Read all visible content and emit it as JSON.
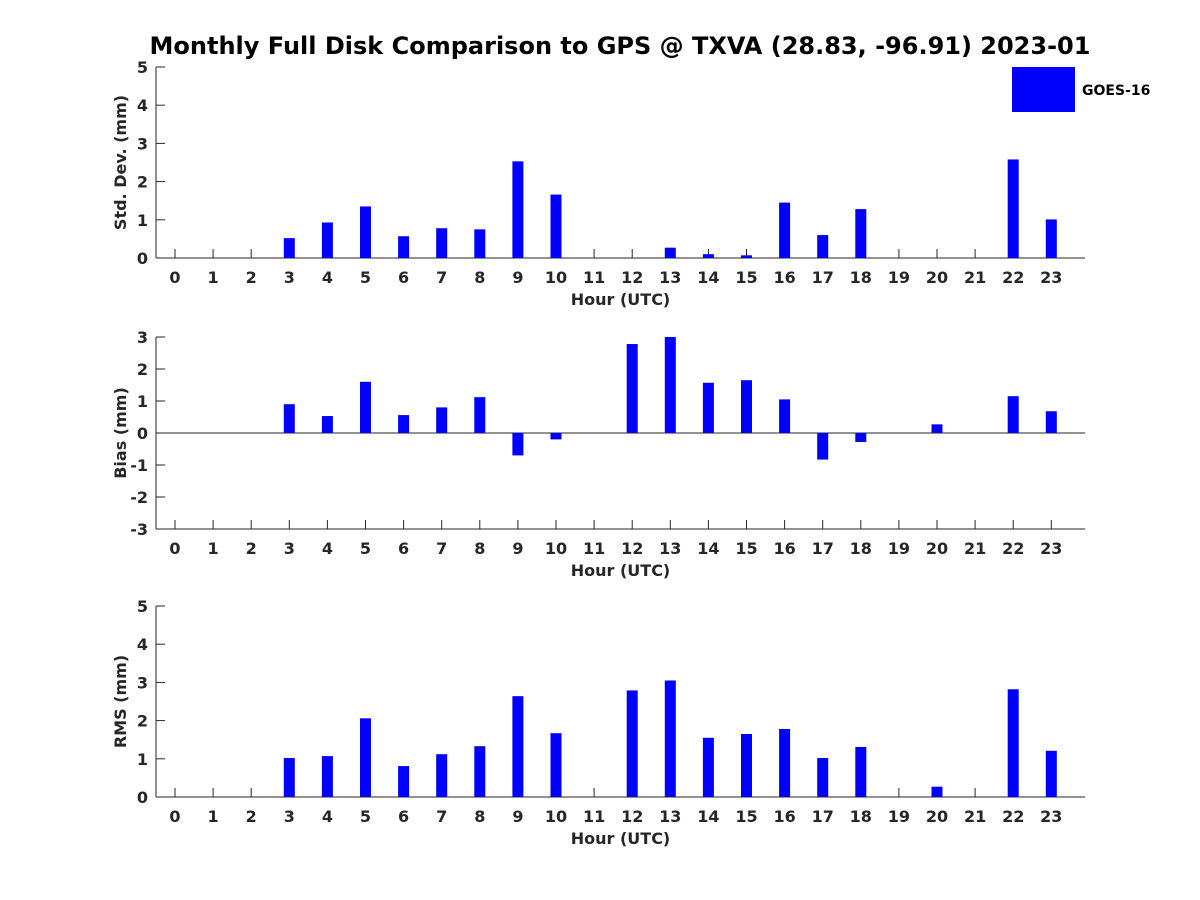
{
  "title": "Monthly Full Disk Comparison to GPS @ TXVA (28.83, -96.91) 2023-01",
  "legend": {
    "entries": [
      "GOES-16"
    ],
    "position": "top-right"
  },
  "colors": {
    "bar": "#0000ff",
    "axis": "#262626",
    "background": "#ffffff"
  },
  "chart_data": [
    {
      "type": "bar",
      "ylabel": "Std. Dev. (mm)",
      "xlabel": "Hour (UTC)",
      "ylim": [
        0,
        5
      ],
      "yticks": [
        0,
        1,
        2,
        3,
        4,
        5
      ],
      "categories": [
        "0",
        "1",
        "2",
        "3",
        "4",
        "5",
        "6",
        "7",
        "8",
        "9",
        "10",
        "11",
        "12",
        "13",
        "14",
        "15",
        "16",
        "17",
        "18",
        "19",
        "20",
        "21",
        "22",
        "23"
      ],
      "series": [
        {
          "name": "GOES-16",
          "values": [
            0,
            0,
            0,
            0.52,
            0.93,
            1.35,
            0.57,
            0.78,
            0.75,
            2.53,
            1.66,
            0,
            0,
            0.27,
            0.1,
            0.07,
            1.45,
            0.6,
            1.28,
            0,
            0,
            0,
            2.58,
            1.01
          ]
        }
      ]
    },
    {
      "type": "bar",
      "ylabel": "Bias (mm)",
      "xlabel": "Hour (UTC)",
      "ylim": [
        -3,
        3
      ],
      "yticks": [
        -3,
        -2,
        -1,
        0,
        1,
        2,
        3
      ],
      "categories": [
        "0",
        "1",
        "2",
        "3",
        "4",
        "5",
        "6",
        "7",
        "8",
        "9",
        "10",
        "11",
        "12",
        "13",
        "14",
        "15",
        "16",
        "17",
        "18",
        "19",
        "20",
        "21",
        "22",
        "23"
      ],
      "series": [
        {
          "name": "GOES-16",
          "values": [
            0,
            0,
            0,
            0.9,
            0.53,
            1.6,
            0.56,
            0.8,
            1.12,
            -0.7,
            -0.2,
            0,
            2.78,
            3.0,
            1.57,
            1.65,
            1.05,
            -0.83,
            -0.28,
            0,
            0.27,
            0,
            1.15,
            0.68
          ]
        }
      ]
    },
    {
      "type": "bar",
      "ylabel": "RMS (mm)",
      "xlabel": "Hour (UTC)",
      "ylim": [
        0,
        5
      ],
      "yticks": [
        0,
        1,
        2,
        3,
        4,
        5
      ],
      "categories": [
        "0",
        "1",
        "2",
        "3",
        "4",
        "5",
        "6",
        "7",
        "8",
        "9",
        "10",
        "11",
        "12",
        "13",
        "14",
        "15",
        "16",
        "17",
        "18",
        "19",
        "20",
        "21",
        "22",
        "23"
      ],
      "series": [
        {
          "name": "GOES-16",
          "values": [
            0,
            0,
            0,
            1.02,
            1.07,
            2.06,
            0.81,
            1.12,
            1.33,
            2.64,
            1.67,
            0,
            2.79,
            3.05,
            1.55,
            1.65,
            1.78,
            1.02,
            1.31,
            0,
            0.27,
            0,
            2.82,
            1.21
          ]
        }
      ]
    }
  ]
}
